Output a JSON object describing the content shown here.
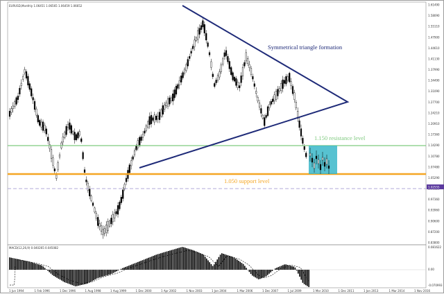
{
  "window": {
    "title": "EURUSD,Monthly  1.06451 1.06565 1.06459 1.06652"
  },
  "annotations": {
    "triangle": "Symmetrical triangle formation",
    "resistance": "1.150 resistance level",
    "support": "1.050 support level"
  },
  "price_axis": {
    "labels": [
      "1.61490",
      "1.58090",
      "1.55110",
      "1.47900",
      "1.44610",
      "1.41130",
      "1.37990",
      "1.34490",
      "1.31090",
      "1.27700",
      "1.24210",
      "1.20910",
      "1.17360",
      "1.14290",
      "1.10780",
      "1.07480",
      "1.05290",
      "1.00850",
      "0.97360",
      "0.93960",
      "0.90600",
      "0.87200",
      "0.83800"
    ],
    "current_price": "1.02555",
    "current_price_color": "#5b3a9e"
  },
  "macd_panel": {
    "title": "MACD(12,26,9) 0.040265 0.045082",
    "axis_labels": [
      "0.081622",
      "0.00",
      "-0.070993"
    ]
  },
  "time_axis": {
    "labels": [
      "1 Jun 1994",
      "1 Feb 1996",
      "1 Dec 1996",
      "1 Aug 1998",
      "1 Aug 1999",
      "1 Dec 2000",
      "1 Apr 2002",
      "1 Nov 2003",
      "1 Jan 2004",
      "1 Mar 2006",
      "1 Dec 2007",
      "1 Jul 2009",
      "1 Mar 2010",
      "1 Dec 2011",
      "1 Jan 2013",
      "1 Mar 2014",
      "1 Nov 2016"
    ]
  },
  "colors": {
    "triangle_lines": "#1e2a78",
    "resistance_line": "#7fc97f",
    "support_line": "#f5a623",
    "dashed_line": "#b0a8d8",
    "highlight_box": "#39b7c9",
    "candles": "#000000",
    "signal_line": "#000000"
  }
}
